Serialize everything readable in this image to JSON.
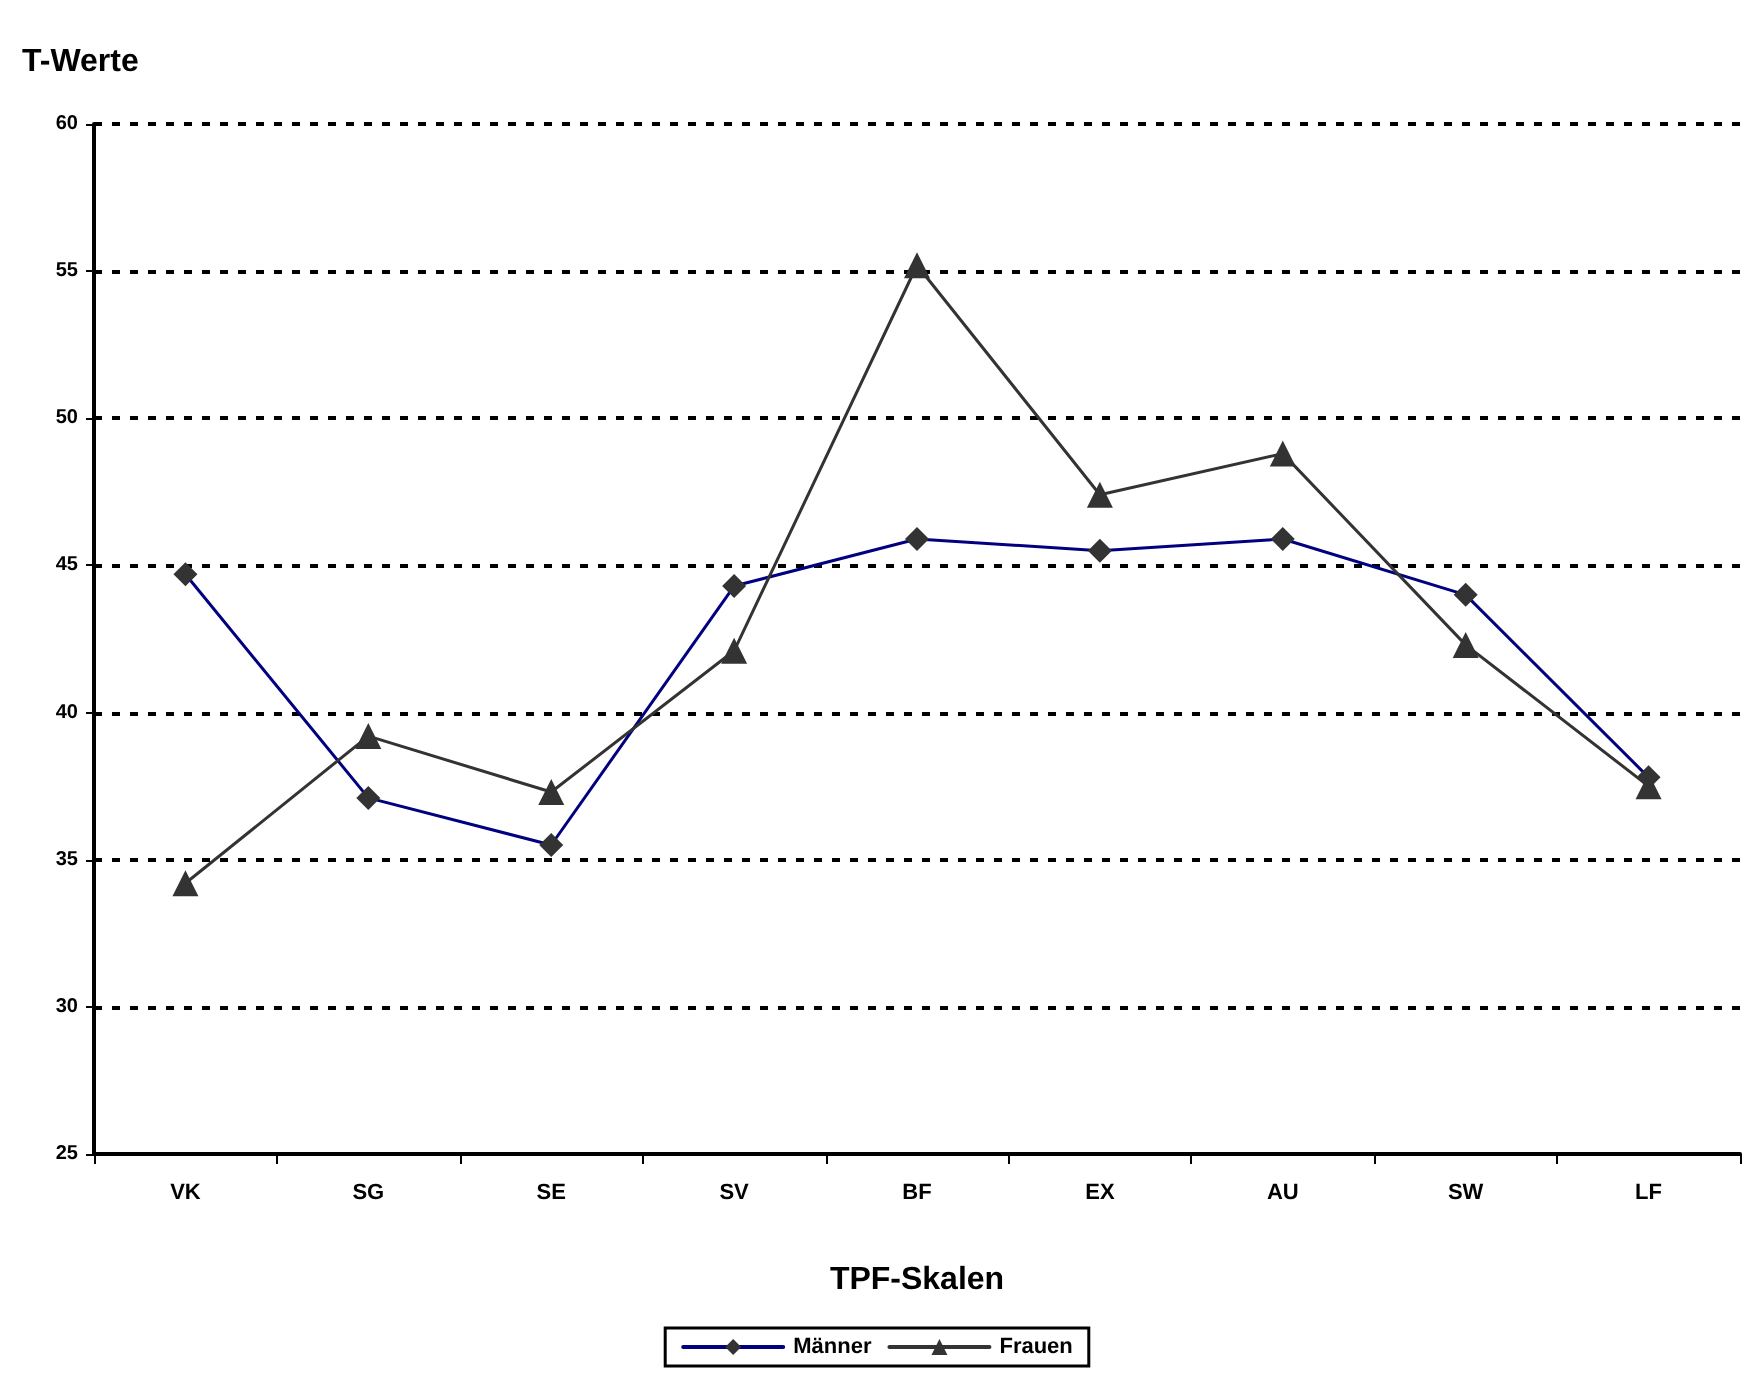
{
  "chart_data": {
    "type": "line",
    "title": "T-Werte",
    "xlabel": "TPF-Skalen",
    "categories": [
      "VK",
      "SG",
      "SE",
      "SV",
      "BF",
      "EX",
      "AU",
      "SW",
      "LF"
    ],
    "series": [
      {
        "name": "Männer",
        "color": "#000080",
        "marker": "diamond",
        "values": [
          44.7,
          37.1,
          35.5,
          44.3,
          45.9,
          45.5,
          45.9,
          44.0,
          37.8
        ]
      },
      {
        "name": "Frauen",
        "color": "#333333",
        "marker": "triangle",
        "values": [
          34.2,
          39.2,
          37.3,
          42.1,
          55.2,
          47.4,
          48.8,
          42.3,
          37.5
        ]
      }
    ],
    "ylim": [
      25,
      60
    ],
    "yticks": [
      25,
      30,
      35,
      40,
      45,
      50,
      55,
      60
    ],
    "grid": "y",
    "legend": "bottom",
    "line_style": "solid"
  }
}
